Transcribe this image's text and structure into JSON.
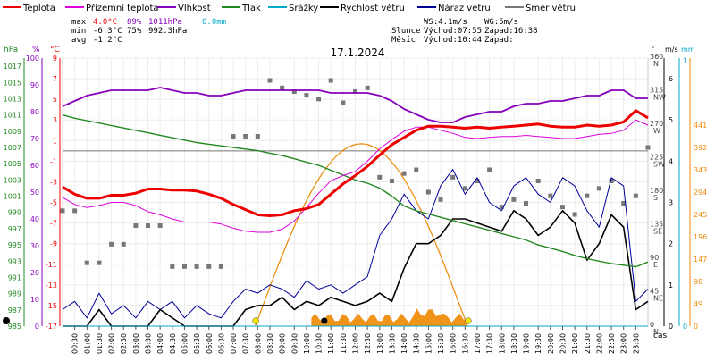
{
  "chart_data": {
    "type": "line",
    "title": "17.1.2024",
    "x_label": "čas",
    "x_ticks": [
      "00:30",
      "01:00",
      "01:30",
      "02:00",
      "02:30",
      "03:00",
      "03:30",
      "04:00",
      "04:30",
      "05:00",
      "05:30",
      "06:00",
      "06:30",
      "07:00",
      "07:30",
      "08:00",
      "08:30",
      "09:00",
      "09:30",
      "10:00",
      "10:30",
      "11:00",
      "11:30",
      "12:00",
      "12:30",
      "13:00",
      "13:30",
      "14:00",
      "14:30",
      "15:00",
      "15:30",
      "16:00",
      "16:30",
      "17:00",
      "17:30",
      "18:00",
      "18:30",
      "19:00",
      "19:30",
      "20:00",
      "20:30",
      "21:00",
      "21:30",
      "22:00",
      "22:30",
      "23:00",
      "23:30"
    ],
    "legend": [
      {
        "label": "Teplota",
        "color": "#ee0000"
      },
      {
        "label": "Přízemní teplota",
        "color": "#dd00dd"
      },
      {
        "label": "Vlhkost",
        "color": "#8800bb"
      },
      {
        "label": "Tlak",
        "color": "#228822"
      },
      {
        "label": "Srážky",
        "color": "#00aacc"
      },
      {
        "label": "Rychlost větru",
        "color": "#000000"
      },
      {
        "label": "Náraz větru",
        "color": "#000099"
      },
      {
        "label": "Směr větru",
        "color": "#777777"
      }
    ],
    "stats": {
      "max_label": "max",
      "max_temp": "4.0°C",
      "max_hum": "89%",
      "max_pres": "1011hPa",
      "precip": "0.0mm",
      "min_label": "min",
      "min_temp": "-6.3°C",
      "min_hum": "75%",
      "min_pres": "992.3hPa",
      "avg_label": "avg",
      "avg_temp": "-1.2°C"
    },
    "wind_info": {
      "ws": "WS:4.1m/s",
      "wg": "WG:5m/s"
    },
    "sun_info": {
      "label": "Slunce",
      "sunrise": "Východ:07:55",
      "sunset": "Západ:16:38"
    },
    "moon_info": {
      "label": "Měsíc",
      "rise": "Východ:10:44",
      "set": "Západ:"
    },
    "axes": {
      "hpa": {
        "unit": "hPa",
        "ticks": [
          "1017",
          "1015",
          "1013",
          "1011",
          "1009",
          "1007",
          "1005",
          "1003",
          "1001",
          "999",
          "997",
          "995",
          "993",
          "991",
          "989",
          "987",
          "985"
        ],
        "color": "#228822"
      },
      "percent": {
        "unit": "%",
        "ticks": [
          "100",
          "90",
          "80",
          "70",
          "60",
          "50",
          "40",
          "30",
          "20",
          "10",
          "0"
        ],
        "color": "#8800bb"
      },
      "celsius": {
        "unit": "°C",
        "ticks": [
          "9",
          "7",
          "5",
          "3",
          "1",
          "-1",
          "-3",
          "-5",
          "-7",
          "-9",
          "-11",
          "-13",
          "-15",
          "-17"
        ],
        "color": "#ee0000"
      },
      "direction": {
        "unit": "°",
        "ticks": [
          "360 N",
          "315 NW",
          "270 W",
          "225 SW",
          "180 S",
          "135 SE",
          "90 E",
          "45 NE",
          "0 N"
        ],
        "color": "#444444"
      },
      "ms": {
        "unit": "m/s",
        "ticks": [
          "6",
          "5",
          "4",
          "3",
          "2",
          "1",
          "0"
        ],
        "color": "#000000"
      },
      "mm": {
        "unit": "mm",
        "ticks": [
          "1",
          "0"
        ],
        "color": "#00aacc"
      },
      "wm2": {
        "ticks": [
          "441",
          "392",
          "343",
          "294",
          "245",
          "196",
          "147",
          "98",
          "49",
          "0"
        ],
        "color": "#ee8800"
      }
    },
    "series": [
      {
        "name": "Teplota",
        "x": [
          0,
          0.5,
          1,
          1.5,
          2,
          2.5,
          3,
          3.5,
          4,
          4.5,
          5,
          5.5,
          6,
          6.5,
          7,
          7.5,
          8,
          8.5,
          9,
          9.5,
          10,
          10.5,
          11,
          11.5,
          12,
          12.5,
          13,
          13.5,
          14,
          14.5,
          15,
          15.5,
          16,
          16.5,
          17,
          17.5,
          18,
          18.5,
          19,
          19.5,
          20,
          20.5,
          21,
          21.5,
          22,
          22.5,
          23,
          23.5,
          24
        ],
        "y": [
          -3.5,
          -4.2,
          -4.6,
          -4.6,
          -4.3,
          -4.3,
          -4.1,
          -3.7,
          -3.7,
          -3.8,
          -3.8,
          -3.9,
          -4.2,
          -4.6,
          -5.2,
          -5.7,
          -6.2,
          -6.3,
          -6.2,
          -5.8,
          -5.6,
          -5.2,
          -4.2,
          -3.2,
          -2.4,
          -1.5,
          -0.4,
          0.6,
          1.3,
          2.0,
          2.4,
          2.4,
          2.3,
          2.2,
          2.3,
          2.2,
          2.3,
          2.4,
          2.5,
          2.6,
          2.4,
          2.3,
          2.3,
          2.5,
          2.4,
          2.5,
          2.8,
          3.9,
          3.2
        ]
      },
      {
        "name": "Přízemní teplota",
        "x": [
          0,
          0.5,
          1,
          1.5,
          2,
          2.5,
          3,
          3.5,
          4,
          4.5,
          5,
          5.5,
          6,
          6.5,
          7,
          7.5,
          8,
          8.5,
          9,
          9.5,
          10,
          10.5,
          11,
          11.5,
          12,
          12.5,
          13,
          13.5,
          14,
          14.5,
          15,
          15.5,
          16,
          16.5,
          17,
          17.5,
          18,
          18.5,
          19,
          19.5,
          20,
          20.5,
          21,
          21.5,
          22,
          22.5,
          23,
          23.5,
          24
        ],
        "y": [
          -4.5,
          -5.2,
          -5.5,
          -5.3,
          -5.0,
          -5.0,
          -5.3,
          -5.9,
          -6.2,
          -6.6,
          -6.9,
          -6.9,
          -6.9,
          -7.1,
          -7.5,
          -7.8,
          -7.9,
          -7.9,
          -7.6,
          -6.8,
          -5.5,
          -4.1,
          -2.9,
          -2.4,
          -2.0,
          -1.0,
          0.2,
          1.1,
          1.9,
          2.3,
          2.3,
          2.0,
          1.7,
          1.3,
          1.2,
          1.3,
          1.4,
          1.4,
          1.5,
          1.4,
          1.3,
          1.2,
          1.2,
          1.4,
          1.6,
          1.7,
          2.0,
          3.0,
          2.5
        ]
      },
      {
        "name": "Vlhkost",
        "x": [
          0,
          0.5,
          1,
          1.5,
          2,
          2.5,
          3,
          3.5,
          4,
          4.5,
          5,
          5.5,
          6,
          6.5,
          7,
          7.5,
          8,
          8.5,
          9,
          9.5,
          10,
          10.5,
          11,
          11.5,
          12,
          12.5,
          13,
          13.5,
          14,
          14.5,
          15,
          15.5,
          16,
          16.5,
          17,
          17.5,
          18,
          18.5,
          19,
          19.5,
          20,
          20.5,
          21,
          21.5,
          22,
          22.5,
          23,
          23.5,
          24
        ],
        "y": [
          82,
          84,
          86,
          87,
          88,
          88,
          88,
          88,
          89,
          88,
          87,
          87,
          86,
          86,
          87,
          88,
          88,
          88,
          88,
          88,
          88,
          88,
          87,
          87,
          87,
          87,
          86,
          84,
          81,
          79,
          77,
          76,
          76,
          78,
          79,
          80,
          80,
          82,
          83,
          83,
          84,
          84,
          85,
          86,
          86,
          88,
          88,
          85,
          85
        ]
      },
      {
        "name": "Tlak",
        "x": [
          0,
          0.5,
          1,
          1.5,
          2,
          2.5,
          3,
          3.5,
          4,
          4.5,
          5,
          5.5,
          6,
          6.5,
          7,
          7.5,
          8,
          8.5,
          9,
          9.5,
          10,
          10.5,
          11,
          11.5,
          12,
          12.5,
          13,
          13.5,
          14,
          14.5,
          15,
          15.5,
          16,
          16.5,
          17,
          17.5,
          18,
          18.5,
          19,
          19.5,
          20,
          20.5,
          21,
          21.5,
          22,
          22.5,
          23,
          23.5,
          24
        ],
        "y": [
          1011.0,
          1010.6,
          1010.3,
          1010.0,
          1009.7,
          1009.4,
          1009.1,
          1008.8,
          1008.5,
          1008.2,
          1007.9,
          1007.6,
          1007.4,
          1007.2,
          1007.0,
          1006.8,
          1006.6,
          1006.3,
          1006.0,
          1005.6,
          1005.2,
          1004.8,
          1004.2,
          1003.6,
          1003.0,
          1002.6,
          1002.0,
          1001.0,
          999.8,
          999.2,
          998.8,
          998.4,
          998.0,
          997.6,
          997.2,
          996.8,
          996.4,
          996.0,
          995.6,
          995.0,
          994.6,
          994.2,
          993.7,
          993.3,
          993.0,
          992.7,
          992.5,
          992.3,
          992.9
        ]
      },
      {
        "name": "Rychlost větru",
        "x": [
          0,
          1,
          1.5,
          2,
          3,
          3.5,
          4,
          5,
          6,
          6.5,
          7,
          7.5,
          8,
          8.5,
          9,
          9.5,
          10,
          10.5,
          11,
          11.5,
          12,
          12.5,
          13,
          13.5,
          14,
          14.5,
          15,
          15.5,
          16,
          16.5,
          17,
          17.5,
          18,
          18.5,
          19,
          19.5,
          20,
          20.5,
          21,
          21.5,
          22,
          22.5,
          23,
          23.5,
          24
        ],
        "y": [
          0,
          0,
          0.4,
          0,
          0,
          0,
          0.4,
          0,
          0,
          0,
          0,
          0.4,
          0.5,
          0.5,
          0.7,
          0.4,
          0.6,
          0.5,
          0.7,
          0.6,
          0.5,
          0.6,
          0.8,
          0.6,
          1.4,
          2.0,
          2.0,
          2.2,
          2.6,
          2.6,
          2.5,
          2.4,
          2.3,
          2.8,
          2.6,
          2.2,
          2.4,
          2.8,
          2.5,
          1.6,
          2.0,
          2.7,
          2.4,
          0.4,
          0.6
        ]
      },
      {
        "name": "Náraz větru",
        "x": [
          0,
          0.5,
          1,
          1.5,
          2,
          2.5,
          3,
          3.5,
          4,
          4.5,
          5,
          5.5,
          6,
          6.5,
          7,
          7.5,
          8,
          8.5,
          9,
          9.5,
          10,
          10.5,
          11,
          11.5,
          12,
          12.5,
          13,
          13.5,
          14,
          14.5,
          15,
          15.5,
          16,
          16.5,
          17,
          17.5,
          18,
          18.5,
          19,
          19.5,
          20,
          20.5,
          21,
          21.5,
          22,
          22.5,
          23,
          23.5,
          24
        ],
        "y": [
          0.4,
          0.6,
          0.2,
          0.8,
          0.3,
          0.5,
          0.2,
          0.6,
          0.4,
          0.6,
          0.2,
          0.5,
          0.3,
          0.2,
          0.6,
          0.9,
          0.8,
          1.0,
          0.9,
          0.7,
          1.1,
          0.9,
          1.0,
          0.8,
          1.0,
          1.2,
          2.2,
          2.6,
          3.2,
          2.8,
          2.6,
          3.4,
          3.8,
          3.2,
          3.6,
          3.0,
          2.8,
          3.4,
          3.6,
          3.2,
          3.0,
          3.6,
          3.4,
          2.8,
          2.4,
          3.6,
          3.4,
          0.6,
          0.9
        ]
      },
      {
        "name": "Směr větru",
        "x": [
          0,
          0.5,
          1,
          1.5,
          2,
          2.5,
          3,
          3.5,
          4,
          4.5,
          5,
          5.5,
          6,
          6.5,
          7,
          7.5,
          8,
          8.5,
          9,
          9.5,
          10,
          10.5,
          11,
          11.5,
          12,
          12.5,
          13,
          13.5,
          14,
          14.5,
          15,
          15.5,
          16,
          16.5,
          17,
          17.5,
          18,
          18.5,
          19,
          19.5,
          20,
          20.5,
          21,
          21.5,
          22,
          22.5,
          23,
          23.5,
          24
        ],
        "y": [
          155,
          155,
          85,
          85,
          110,
          110,
          135,
          135,
          135,
          80,
          80,
          80,
          80,
          80,
          255,
          255,
          255,
          330,
          320,
          315,
          310,
          305,
          330,
          300,
          315,
          320,
          200,
          195,
          205,
          210,
          180,
          170,
          200,
          185,
          195,
          210,
          160,
          170,
          165,
          195,
          175,
          160,
          150,
          175,
          185,
          195,
          165,
          175,
          240
        ]
      },
      {
        "name": "Srážky",
        "x": [
          0,
          24
        ],
        "y": [
          0,
          0
        ]
      }
    ],
    "radiation_range": {
      "x": [
        7.9,
        16.6
      ],
      "peak": 400
    },
    "markers": [
      {
        "name": "sunrise",
        "x": 7.92,
        "color": "#f2e200"
      },
      {
        "name": "sunset",
        "x": 16.63,
        "color": "#f2e200"
      },
      {
        "name": "moonrise",
        "x": 10.73,
        "color": "#000000"
      }
    ],
    "ranges": {
      "temp": [
        -17,
        9
      ],
      "percent": [
        0,
        100
      ],
      "hpa": [
        985,
        1018
      ],
      "ms": [
        0,
        6.5
      ],
      "deg": [
        0,
        360
      ],
      "hours": [
        0,
        24
      ]
    }
  }
}
